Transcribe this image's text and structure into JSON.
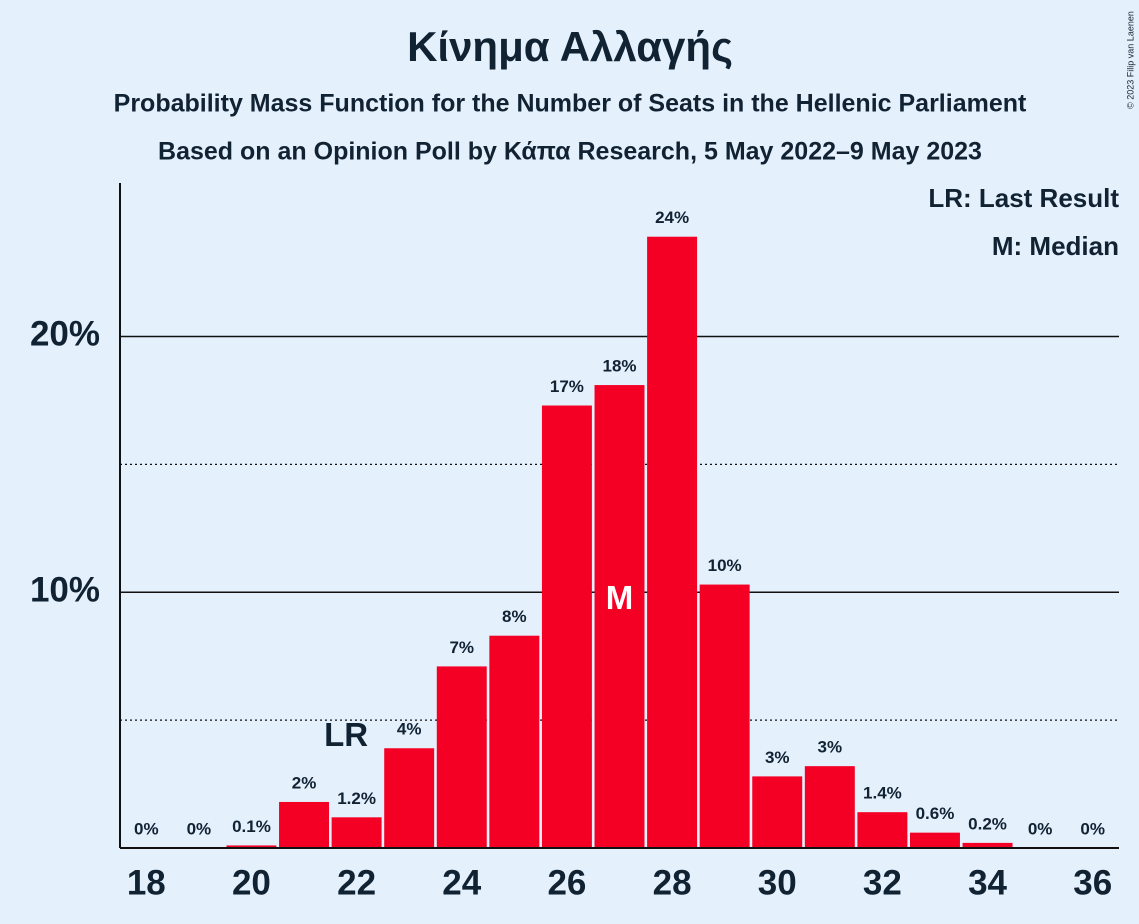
{
  "chart_data": {
    "type": "bar",
    "title": "Κίνημα Αλλαγής",
    "subtitle": "Probability Mass Function for the Number of Seats in the Hellenic Parliament",
    "subtitle2": "Based on an Opinion Poll by Κάπα Research, 5 May 2022–9 May 2023",
    "copyright": "© 2023 Filip van Laenen",
    "x": [
      18,
      19,
      20,
      21,
      22,
      23,
      24,
      25,
      26,
      27,
      28,
      29,
      30,
      31,
      32,
      33,
      34,
      35,
      36
    ],
    "values": [
      0,
      0,
      0.1,
      1.8,
      1.2,
      3.9,
      7.1,
      8.3,
      17.3,
      18.1,
      23.9,
      10.3,
      2.8,
      3.2,
      1.4,
      0.6,
      0.2,
      0,
      0
    ],
    "value_labels": [
      "0%",
      "0%",
      "0.1%",
      "2%",
      "1.2%",
      "4%",
      "7%",
      "8%",
      "17%",
      "18%",
      "24%",
      "10%",
      "3%",
      "3%",
      "1.4%",
      "0.6%",
      "0.2%",
      "0%",
      "0%"
    ],
    "color": "#f50025",
    "xlim": [
      17.5,
      36.5
    ],
    "xticks": [
      18,
      20,
      22,
      24,
      26,
      28,
      30,
      32,
      34,
      36
    ],
    "ylim": [
      0,
      26
    ],
    "yticks": [
      {
        "value": 10,
        "label": "10%"
      },
      {
        "value": 20,
        "label": "20%"
      }
    ],
    "minor_yticks": [
      5,
      15
    ],
    "grid": true,
    "annotations": [
      {
        "x": 22,
        "text": "LR"
      },
      {
        "x": 27,
        "text": "M"
      }
    ],
    "legend": [
      "LR: Last Result",
      "M: Median"
    ],
    "legend_position": "upper right"
  }
}
